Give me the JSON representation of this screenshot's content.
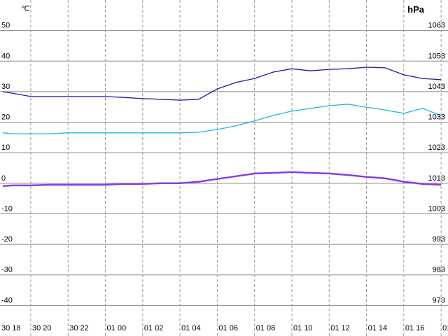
{
  "chart_data": {
    "type": "line",
    "y_label": "℃",
    "y2_label": "hPa",
    "x": [
      0.5,
      1,
      2,
      3,
      4,
      5,
      6,
      7,
      8,
      9,
      10,
      11,
      12,
      13,
      14,
      15,
      16,
      17,
      18,
      19,
      20,
      21,
      22,
      23,
      24
    ],
    "series": [
      {
        "color": "#1c1ca6",
        "values": [
          30.0,
          29.5,
          28.4,
          28.4,
          28.4,
          28.4,
          28.4,
          28.1,
          27.7,
          27.5,
          27.2,
          27.5,
          30.9,
          33.0,
          34.3,
          36.4,
          37.5,
          36.8,
          37.3,
          37.5,
          38.0,
          37.8,
          35.5,
          34.3,
          33.9
        ]
      },
      {
        "color": "#22b4e6",
        "values": [
          16.5,
          16.2,
          16.2,
          16.2,
          16.5,
          16.5,
          16.5,
          16.5,
          16.5,
          16.5,
          16.5,
          16.7,
          17.6,
          18.8,
          20.4,
          22.2,
          23.6,
          24.5,
          25.4,
          25.9,
          24.9,
          24.0,
          22.9,
          24.5,
          22.2
        ]
      },
      {
        "color": "#8a3ee0",
        "axis": "y2",
        "values": [
          1012.1,
          1012.3,
          1012.3,
          1012.5,
          1012.5,
          1012.5,
          1012.5,
          1012.8,
          1012.8,
          1013.0,
          1013.0,
          1013.5,
          1014.4,
          1015.3,
          1016.2,
          1016.4,
          1016.7,
          1016.4,
          1016.2,
          1015.7,
          1015.1,
          1014.6,
          1013.5,
          1012.8,
          1012.5
        ]
      }
    ],
    "xlim": [
      0.35,
      24.37
    ],
    "xticks": [
      {
        "value": 0,
        "label": "30 18"
      },
      {
        "value": 2,
        "label": "30 20"
      },
      {
        "value": 4,
        "label": "30 22"
      },
      {
        "value": 6,
        "label": "01 00"
      },
      {
        "value": 8,
        "label": "01 02"
      },
      {
        "value": 10,
        "label": "01 04"
      },
      {
        "value": 12,
        "label": "01 06"
      },
      {
        "value": 14,
        "label": "01 08"
      },
      {
        "value": 16,
        "label": "01 10"
      },
      {
        "value": 18,
        "label": "01 12"
      },
      {
        "value": 20,
        "label": "01 14"
      },
      {
        "value": 22,
        "label": "01 16"
      },
      {
        "value": 24,
        "label": "01"
      }
    ],
    "ylim": [
      -50,
      60
    ],
    "yticks": [
      50,
      40,
      30,
      20,
      10,
      0,
      -10,
      -20,
      -30,
      -40
    ],
    "y2lim": [
      963,
      1073
    ],
    "y2ticks": [
      1063,
      1053,
      1043,
      1033,
      1023,
      1013,
      1003,
      993,
      983,
      973
    ],
    "grid": true
  }
}
